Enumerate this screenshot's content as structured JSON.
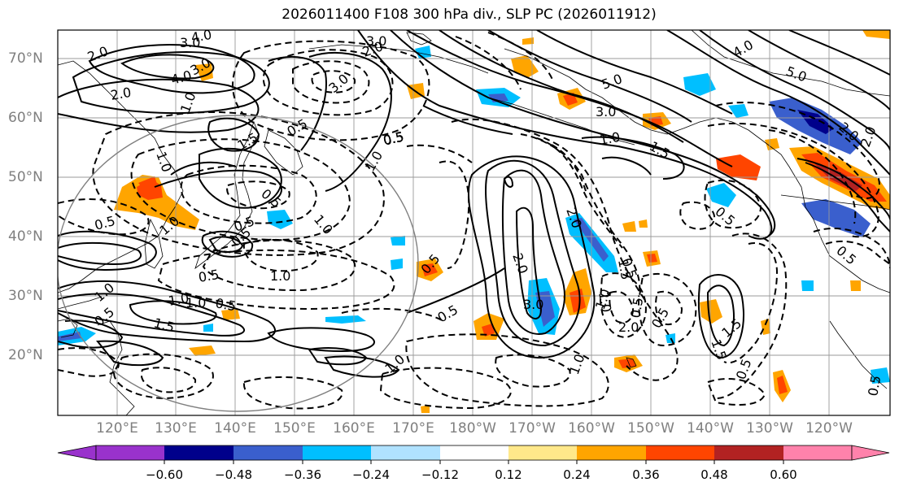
{
  "title": "2026011400 F108 300 hPa div., SLP PC (2026011912)",
  "lat_labels": [
    "70°N",
    "60°N",
    "50°N",
    "40°N",
    "30°N",
    "20°N"
  ],
  "lon_labels": [
    "120°E",
    "130°E",
    "140°E",
    "150°E",
    "160°E",
    "170°E",
    "180°W",
    "170°W",
    "160°W",
    "150°W",
    "140°W",
    "130°W",
    "120°W"
  ],
  "colorbar": {
    "colors": [
      "#9932cc",
      "#00008b",
      "#3a5fcd",
      "#00bfff",
      "#b0e2ff",
      "#ffffff",
      "#ffe88a",
      "#ffa500",
      "#ff4500",
      "#b22222",
      "#ff82ab"
    ],
    "tick_labels": [
      "−0.60",
      "−0.48",
      "−0.36",
      "−0.24",
      "−0.12",
      "0.12",
      "0.24",
      "0.36",
      "0.48",
      "0.60"
    ]
  },
  "contour_labels": {
    "positive": [
      "4.0",
      "3.0",
      "2.0",
      "4.0",
      "3.0",
      "2.0",
      "1.0",
      "1.5",
      "5.0",
      "3.0",
      "4.0",
      "5.0",
      "1.5",
      "1.0",
      "0.5",
      "2.0",
      "3.0",
      "2.0",
      "1.5",
      "1.0",
      "0.5",
      "1.0",
      "0.5",
      "1.0",
      "1.5",
      "0.5",
      "1.0",
      "1.0",
      "0.5",
      "0.5",
      "1.0",
      "0.5",
      "0.5",
      "2.0"
    ],
    "negative": [
      "3.0",
      "2.0",
      "3.0",
      "0.5",
      "0.5",
      "0.5",
      "1.0",
      "1.0",
      "0.5",
      "0.5",
      "1.0",
      "1.5",
      "2.0",
      "0.5",
      "1.0",
      "0.5",
      "1.0",
      "1.5",
      "2.0",
      "0.5",
      "0.5",
      "0.5",
      "1.0",
      "0.5"
    ]
  }
}
